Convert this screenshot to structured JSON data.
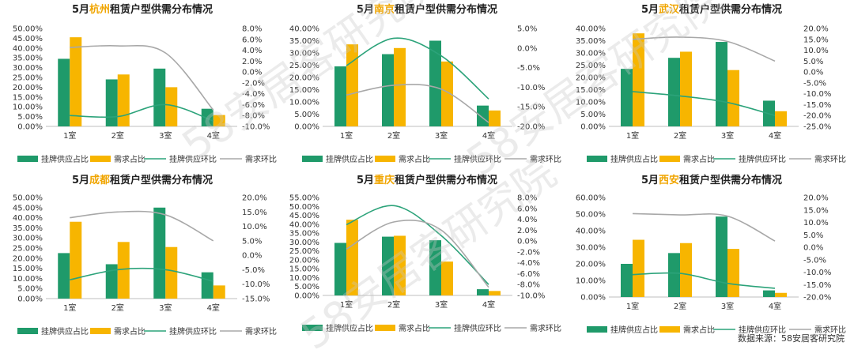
{
  "legend_labels": [
    "挂牌供应占比",
    "需求占比",
    "挂牌供应环比",
    "需求环比"
  ],
  "colors": {
    "supply": "#1f9a6a",
    "demand": "#f7b500",
    "supply_line": "#2ca37a",
    "demand_line": "#a8a8a8",
    "city": "#f0a500"
  },
  "watermark": "58安居客研究院",
  "source": "数据来源：58安居客研究院",
  "chart_data": [
    {
      "type": "bar",
      "title_prefix": "5月",
      "city": "杭州",
      "title_suffix": "租赁户型供需分布情况",
      "categories": [
        "1室",
        "2室",
        "3室",
        "4室"
      ],
      "series": [
        {
          "name": "挂牌供应占比",
          "values": [
            34.5,
            24,
            29.5,
            9
          ],
          "axis": "left"
        },
        {
          "name": "需求占比",
          "values": [
            45.5,
            26.5,
            20,
            5.8
          ],
          "axis": "left"
        },
        {
          "name": "挂牌供应环比",
          "values": [
            -8.0,
            -8.2,
            -6.0,
            -9.0
          ],
          "axis": "right",
          "kind": "line"
        },
        {
          "name": "需求环比",
          "values": [
            4.5,
            4.8,
            3.5,
            -7.0
          ],
          "axis": "right",
          "kind": "line"
        }
      ],
      "left_axis": {
        "ticks": [
          "0.00%",
          "5.00%",
          "10.00%",
          "15.00%",
          "20.00%",
          "25.00%",
          "30.00%",
          "35.00%",
          "40.00%",
          "45.00%",
          "50.00%"
        ],
        "min": 0,
        "max": 50
      },
      "right_axis": {
        "ticks": [
          "-10.0%",
          "-8.0%",
          "-6.0%",
          "-4.0%",
          "-2.0%",
          "0.0%",
          "2.0%",
          "4.0%",
          "6.0%",
          "8.0%"
        ],
        "min": -10,
        "max": 8
      }
    },
    {
      "type": "bar",
      "title_prefix": "5月",
      "city": "南京",
      "title_suffix": "租赁户型供需分布情况",
      "categories": [
        "1室",
        "2室",
        "3室",
        "4室"
      ],
      "series": [
        {
          "name": "挂牌供应占比",
          "values": [
            24.5,
            29.5,
            35,
            8.5
          ],
          "axis": "left"
        },
        {
          "name": "需求占比",
          "values": [
            33.5,
            32,
            26.5,
            6.5
          ],
          "axis": "left"
        },
        {
          "name": "挂牌供应环比",
          "values": [
            -4.5,
            2.5,
            -2.0,
            -13.0
          ],
          "axis": "right",
          "kind": "line"
        },
        {
          "name": "需求环比",
          "values": [
            -12.0,
            -9.5,
            -10.5,
            -19.0
          ],
          "axis": "right",
          "kind": "line"
        }
      ],
      "left_axis": {
        "ticks": [
          "0.00%",
          "5.00%",
          "10.00%",
          "15.00%",
          "20.00%",
          "25.00%",
          "30.00%",
          "35.00%",
          "40.00%"
        ],
        "min": 0,
        "max": 40
      },
      "right_axis": {
        "ticks": [
          "-20.0%",
          "-15.0%",
          "-10.0%",
          "-5.0%",
          "0.0%",
          "5.0%"
        ],
        "min": -20,
        "max": 5
      }
    },
    {
      "type": "bar",
      "title_prefix": "5月",
      "city": "武汉",
      "title_suffix": "租赁户型供需分布情况",
      "categories": [
        "1室",
        "2室",
        "3室",
        "4室"
      ],
      "series": [
        {
          "name": "挂牌供应占比",
          "values": [
            23.5,
            28,
            34.5,
            10.5
          ],
          "axis": "left"
        },
        {
          "name": "需求占比",
          "values": [
            38,
            30.5,
            23,
            6.2
          ],
          "axis": "left"
        },
        {
          "name": "挂牌供应环比",
          "values": [
            -9.0,
            -11.0,
            -14.0,
            -20.0
          ],
          "axis": "right",
          "kind": "line"
        },
        {
          "name": "需求环比",
          "values": [
            15.0,
            16.0,
            14.0,
            5.0
          ],
          "axis": "right",
          "kind": "line"
        }
      ],
      "left_axis": {
        "ticks": [
          "0.00%",
          "5.00%",
          "10.00%",
          "15.00%",
          "20.00%",
          "25.00%",
          "30.00%",
          "35.00%",
          "40.00%"
        ],
        "min": 0,
        "max": 40
      },
      "right_axis": {
        "ticks": [
          "-25.0%",
          "-20.0%",
          "-15.0%",
          "-10.0%",
          "-5.0%",
          "0.0%",
          "5.0%",
          "10.0%",
          "15.0%",
          "20.0%"
        ],
        "min": -25,
        "max": 20
      }
    },
    {
      "type": "bar",
      "title_prefix": "5月",
      "city": "成都",
      "title_suffix": "租赁户型供需分布情况",
      "categories": [
        "1室",
        "2室",
        "3室",
        "4室"
      ],
      "series": [
        {
          "name": "挂牌供应占比",
          "values": [
            22.5,
            17,
            45,
            13
          ],
          "axis": "left"
        },
        {
          "name": "需求占比",
          "values": [
            38,
            28,
            25.5,
            6.5
          ],
          "axis": "left"
        },
        {
          "name": "挂牌供应环比",
          "values": [
            -8.5,
            -5.0,
            -5.0,
            -9.0
          ],
          "axis": "right",
          "kind": "line"
        },
        {
          "name": "需求环比",
          "values": [
            13.0,
            15.0,
            14.0,
            5.0
          ],
          "axis": "right",
          "kind": "line"
        }
      ],
      "left_axis": {
        "ticks": [
          "0.00%",
          "5.00%",
          "10.00%",
          "15.00%",
          "20.00%",
          "25.00%",
          "30.00%",
          "35.00%",
          "40.00%",
          "45.00%",
          "50.00%"
        ],
        "min": 0,
        "max": 50
      },
      "right_axis": {
        "ticks": [
          "-15.0%",
          "-10.0%",
          "-5.0%",
          "0.0%",
          "5.0%",
          "10.0%",
          "15.0%",
          "20.0%"
        ],
        "min": -15,
        "max": 20
      }
    },
    {
      "type": "bar",
      "title_prefix": "5月",
      "city": "重庆",
      "title_suffix": "租赁户型供需分布情况",
      "categories": [
        "1室",
        "2室",
        "3室",
        "4室"
      ],
      "series": [
        {
          "name": "挂牌供应占比",
          "values": [
            29.5,
            33,
            31,
            3.5
          ],
          "axis": "left"
        },
        {
          "name": "需求占比",
          "values": [
            42.5,
            33.5,
            19,
            2.5
          ],
          "axis": "left"
        },
        {
          "name": "挂牌供应环比",
          "values": [
            3.0,
            6.5,
            1.0,
            -8.0
          ],
          "axis": "right",
          "kind": "line"
        },
        {
          "name": "需求环比",
          "values": [
            -1.5,
            3.5,
            2.0,
            -8.5
          ],
          "axis": "right",
          "kind": "line"
        }
      ],
      "left_axis": {
        "ticks": [
          "0.00%",
          "5.00%",
          "10.00%",
          "15.00%",
          "20.00%",
          "25.00%",
          "30.00%",
          "35.00%",
          "40.00%",
          "45.00%",
          "50.00%",
          "55.00%"
        ],
        "min": 0,
        "max": 55
      },
      "right_axis": {
        "ticks": [
          "-10.0%",
          "-8.0%",
          "-6.0%",
          "-4.0%",
          "-2.0%",
          "0.0%",
          "2.0%",
          "4.0%",
          "6.0%",
          "8.0%"
        ],
        "min": -10,
        "max": 8
      }
    },
    {
      "type": "bar",
      "title_prefix": "5月",
      "city": "西安",
      "title_suffix": "租赁户型供需分布情况",
      "categories": [
        "1室",
        "2室",
        "3室",
        "4室"
      ],
      "series": [
        {
          "name": "挂牌供应占比",
          "values": [
            20,
            26.5,
            48.5,
            4
          ],
          "axis": "left"
        },
        {
          "name": "需求占比",
          "values": [
            34.5,
            32.5,
            29,
            2.5
          ],
          "axis": "left"
        },
        {
          "name": "挂牌供应环比",
          "values": [
            -11.0,
            -10.5,
            -14.5,
            -16.5
          ],
          "axis": "right",
          "kind": "line"
        },
        {
          "name": "需求环比",
          "values": [
            13.5,
            13.0,
            12.5,
            2.5
          ],
          "axis": "right",
          "kind": "line"
        }
      ],
      "left_axis": {
        "ticks": [
          "0.00%",
          "10.00%",
          "20.00%",
          "30.00%",
          "40.00%",
          "50.00%",
          "60.00%"
        ],
        "min": 0,
        "max": 60
      },
      "right_axis": {
        "ticks": [
          "-20.0%",
          "-15.0%",
          "-10.0%",
          "-5.0%",
          "0.0%",
          "5.0%",
          "10.0%",
          "15.0%",
          "20.0%"
        ],
        "min": -20,
        "max": 20
      }
    }
  ]
}
